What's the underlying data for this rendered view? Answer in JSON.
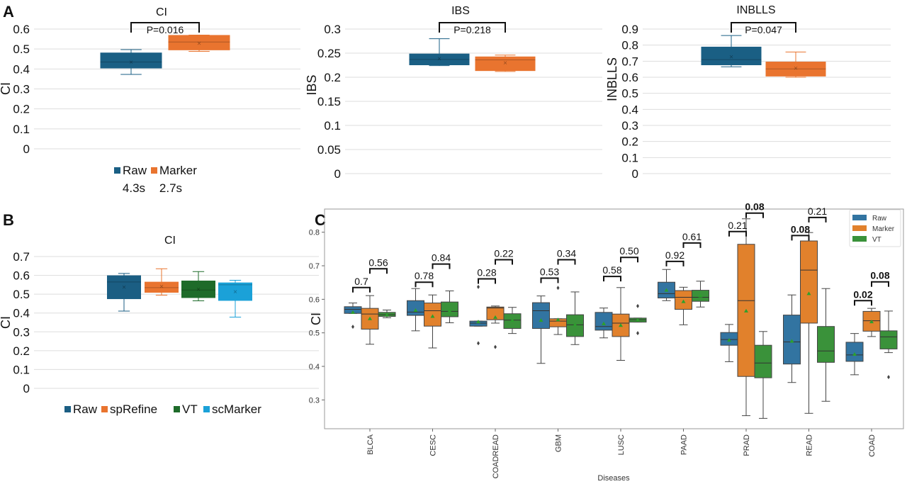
{
  "panel_labels": {
    "a": "A",
    "b": "B",
    "c": "C"
  },
  "chart_data": [
    {
      "id": "A_CI",
      "type": "box",
      "title": "CI",
      "ylabel": "CI",
      "ylim": [
        0,
        0.6
      ],
      "yticks": [
        "0",
        "0.1",
        "0.2",
        "0.3",
        "0.4",
        "0.5",
        "0.6"
      ],
      "grid": true,
      "colors": [
        "#1a5f84",
        "#e9742f"
      ],
      "series": [
        {
          "name": "Raw",
          "lo": 0.373,
          "q1": 0.403,
          "med": 0.435,
          "q3": 0.482,
          "hi": 0.497,
          "mean": 0.437
        },
        {
          "name": "Marker",
          "lo": 0.488,
          "q1": 0.494,
          "med": 0.535,
          "q3": 0.57,
          "hi": 0.57,
          "mean": 0.53
        }
      ],
      "pvalue": "P=0.016",
      "legend": [
        {
          "name": "Raw",
          "time": "4.3s"
        },
        {
          "name": "Marker",
          "time": "2.7s"
        }
      ],
      "legend_position": "bottom"
    },
    {
      "id": "A_IBS",
      "type": "box",
      "title": "IBS",
      "ylabel": "IBS",
      "ylim": [
        0,
        0.3
      ],
      "yticks": [
        "0",
        "0.05",
        "0.1",
        "0.15",
        "0.2",
        "0.25",
        "0.3"
      ],
      "grid": true,
      "colors": [
        "#1a5f84",
        "#e9742f"
      ],
      "series": [
        {
          "name": "Raw",
          "lo": 0.224,
          "q1": 0.225,
          "med": 0.237,
          "q3": 0.249,
          "hi": 0.28,
          "mean": 0.24
        },
        {
          "name": "Marker",
          "lo": 0.212,
          "q1": 0.213,
          "med": 0.236,
          "q3": 0.243,
          "hi": 0.246,
          "mean": 0.231
        }
      ],
      "pvalue": "P=0.218"
    },
    {
      "id": "A_INBLLS",
      "type": "box",
      "title": "INBLLS",
      "ylabel": "INBLLS",
      "ylim": [
        0,
        0.9
      ],
      "yticks": [
        "0",
        "0.1",
        "0.2",
        "0.3",
        "0.4",
        "0.5",
        "0.6",
        "0.7",
        "0.8",
        "0.9"
      ],
      "grid": true,
      "colors": [
        "#1a5f84",
        "#e9742f"
      ],
      "series": [
        {
          "name": "Raw",
          "lo": 0.665,
          "q1": 0.675,
          "med": 0.71,
          "q3": 0.79,
          "hi": 0.86,
          "mean": 0.73
        },
        {
          "name": "Marker",
          "lo": 0.6,
          "q1": 0.605,
          "med": 0.652,
          "q3": 0.697,
          "hi": 0.757,
          "mean": 0.66
        }
      ],
      "pvalue": "P=0.047"
    },
    {
      "id": "B_CI",
      "type": "box",
      "title": "CI",
      "ylabel": "CI",
      "ylim": [
        0,
        0.7
      ],
      "yticks": [
        "0",
        "0.1",
        "0.2",
        "0.3",
        "0.4",
        "0.5",
        "0.6",
        "0.7"
      ],
      "grid": true,
      "colors": [
        "#1b5e83",
        "#e9742f",
        "#1e6b2a",
        "#1ba1d8"
      ],
      "series": [
        {
          "name": "Raw",
          "lo": 0.41,
          "q1": 0.474,
          "med": 0.565,
          "q3": 0.6,
          "hi": 0.61,
          "mean": 0.54
        },
        {
          "name": "spRefine",
          "lo": 0.495,
          "q1": 0.508,
          "med": 0.535,
          "q3": 0.566,
          "hi": 0.635,
          "mean": 0.543
        },
        {
          "name": "VT",
          "lo": 0.465,
          "q1": 0.48,
          "med": 0.522,
          "q3": 0.572,
          "hi": 0.62,
          "mean": 0.528
        },
        {
          "name": "scMarker",
          "lo": 0.378,
          "q1": 0.465,
          "med": 0.55,
          "q3": 0.562,
          "hi": 0.574,
          "mean": 0.515
        }
      ],
      "legend_position": "bottom"
    },
    {
      "id": "C",
      "type": "box",
      "ylabel": "CI",
      "xlabel": "Diseases",
      "ylim": [
        0.214,
        0.869
      ],
      "yticks": [
        "0.3",
        "0.4",
        "0.5",
        "0.6",
        "0.7",
        "0.8"
      ],
      "grid": false,
      "legend": [
        "Raw",
        "Marker",
        "VT"
      ],
      "legend_position": "top-right",
      "colors": [
        "#3274a1",
        "#e1812c",
        "#3a923a"
      ],
      "mean_color": "#2ca02c",
      "categories": [
        "BLCA",
        "CESC",
        "COADREAD",
        "GBM",
        "LUSC",
        "PAAD",
        "PRAD",
        "READ",
        "COAD"
      ],
      "groups": [
        {
          "boxes": [
            [
              0.558,
              0.558,
              0.57,
              0.578,
              0.589,
              0.561,
              [
                0.518
              ]
            ],
            [
              0.466,
              0.511,
              0.556,
              0.573,
              0.611,
              0.542,
              []
            ],
            [
              0.545,
              0.549,
              0.554,
              0.561,
              0.568,
              0.553,
              []
            ]
          ],
          "p": [
            {
              "label": "0.7",
              "y": 0.635,
              "bold": false
            },
            {
              "label": "0.56",
              "y": 0.691,
              "bold": false
            }
          ]
        },
        {
          "boxes": [
            [
              0.506,
              0.552,
              0.562,
              0.596,
              0.632,
              0.567,
              []
            ],
            [
              0.455,
              0.52,
              0.566,
              0.589,
              0.613,
              0.549,
              []
            ],
            [
              0.53,
              0.548,
              0.564,
              0.592,
              0.625,
              0.565,
              []
            ]
          ],
          "p": [
            {
              "label": "0.78",
              "y": 0.651,
              "bold": false
            },
            {
              "label": "0.84",
              "y": 0.705,
              "bold": false
            }
          ]
        },
        {
          "boxes": [
            [
              0.52,
              0.52,
              0.529,
              0.535,
              0.535,
              0.533,
              [
                0.637,
                0.469
              ]
            ],
            [
              0.529,
              0.539,
              0.574,
              0.577,
              0.58,
              0.546,
              [
                0.458
              ]
            ],
            [
              0.498,
              0.513,
              0.538,
              0.557,
              0.576,
              0.537,
              []
            ]
          ],
          "p": [
            {
              "label": "0.28",
              "y": 0.661,
              "bold": false
            },
            {
              "label": "0.22",
              "y": 0.718,
              "bold": false
            }
          ]
        },
        {
          "boxes": [
            [
              0.409,
              0.513,
              0.566,
              0.59,
              0.61,
              0.537,
              []
            ],
            [
              0.495,
              0.518,
              0.535,
              0.542,
              0.542,
              0.539,
              [
                0.634
              ]
            ],
            [
              0.465,
              0.489,
              0.524,
              0.554,
              0.622,
              0.524,
              []
            ]
          ],
          "p": [
            {
              "label": "0.53",
              "y": 0.663,
              "bold": false
            },
            {
              "label": "0.34",
              "y": 0.718,
              "bold": false
            }
          ]
        },
        {
          "boxes": [
            [
              0.485,
              0.508,
              0.519,
              0.561,
              0.574,
              0.527,
              []
            ],
            [
              0.418,
              0.489,
              0.529,
              0.556,
              0.635,
              0.522,
              []
            ],
            [
              0.532,
              0.532,
              0.539,
              0.544,
              0.544,
              0.538,
              [
                0.58,
                0.499
              ]
            ]
          ],
          "p": [
            {
              "label": "0.58",
              "y": 0.668,
              "bold": false
            },
            {
              "label": "0.50",
              "y": 0.725,
              "bold": false
            }
          ]
        },
        {
          "boxes": [
            [
              0.596,
              0.604,
              0.617,
              0.651,
              0.689,
              0.627,
              []
            ],
            [
              0.524,
              0.57,
              0.606,
              0.626,
              0.636,
              0.593,
              []
            ],
            [
              0.577,
              0.594,
              0.606,
              0.627,
              0.654,
              0.61,
              []
            ]
          ],
          "p": [
            {
              "label": "0.92",
              "y": 0.713,
              "bold": false
            },
            {
              "label": "0.61",
              "y": 0.768,
              "bold": false
            }
          ]
        },
        {
          "boxes": [
            [
              0.414,
              0.463,
              0.48,
              0.501,
              0.525,
              0.478,
              []
            ],
            [
              0.253,
              0.37,
              0.596,
              0.764,
              0.84,
              0.565,
              []
            ],
            [
              0.245,
              0.366,
              0.41,
              0.463,
              0.504,
              null,
              []
            ]
          ],
          "p": [
            {
              "label": "0.21",
              "y": 0.802,
              "bold": false
            },
            {
              "label": "0.08",
              "y": 0.857,
              "bold": true
            }
          ]
        },
        {
          "boxes": [
            [
              0.352,
              0.407,
              0.473,
              0.553,
              0.613,
              0.475,
              []
            ],
            [
              0.26,
              0.529,
              0.687,
              0.774,
              0.799,
              0.617,
              []
            ],
            [
              0.296,
              0.412,
              0.446,
              0.519,
              0.632,
              null,
              []
            ]
          ],
          "p": [
            {
              "label": "0.08",
              "y": 0.79,
              "bold": true
            },
            {
              "label": "0.21",
              "y": 0.844,
              "bold": false
            }
          ]
        },
        {
          "boxes": [
            [
              0.375,
              0.415,
              0.434,
              0.472,
              0.498,
              0.436,
              []
            ],
            [
              0.489,
              0.505,
              0.536,
              0.564,
              0.573,
              0.533,
              []
            ],
            [
              0.441,
              0.452,
              0.488,
              0.506,
              0.565,
              null,
              [
                0.368
              ]
            ]
          ],
          "p": [
            {
              "label": "0.02",
              "y": 0.596,
              "bold": true
            },
            {
              "label": "0.08",
              "y": 0.652,
              "bold": true
            }
          ]
        }
      ]
    }
  ]
}
